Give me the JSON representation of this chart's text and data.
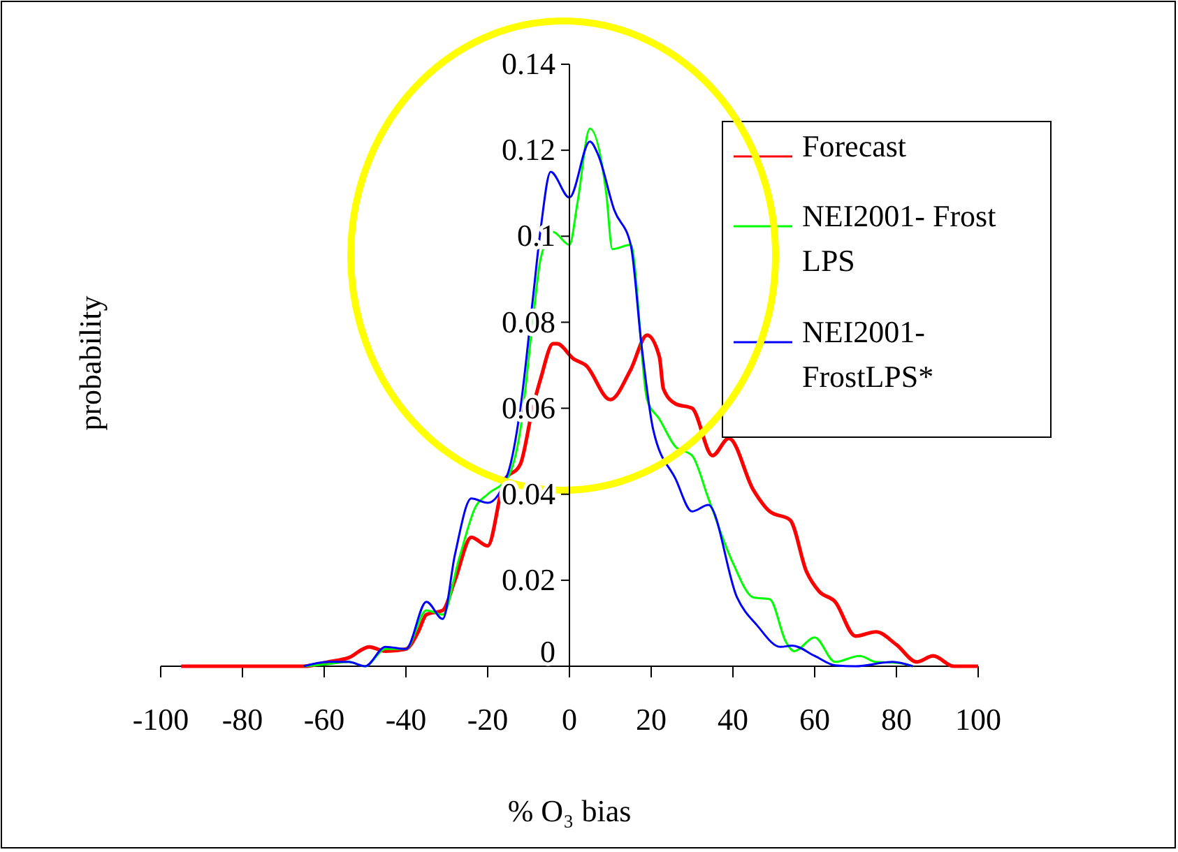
{
  "chart_data": {
    "type": "line",
    "xlabel": "% O₃ bias",
    "ylabel": "probability",
    "xlim": [
      -100,
      100
    ],
    "xticks": [
      -100,
      -80,
      -60,
      -40,
      -20,
      0,
      20,
      40,
      60,
      80,
      100
    ],
    "ylim": [
      0,
      0.14
    ],
    "yticks": [
      0,
      0.02,
      0.04,
      0.06,
      0.08,
      0.1,
      0.12,
      0.14
    ],
    "grid": false,
    "legend": "top right",
    "marker": "none",
    "line_style": "solid",
    "series": [
      {
        "name": "Forecast",
        "color": "#ff0000",
        "x": [
          -95,
          -80,
          -65,
          -59,
          -54,
          -49,
          -45,
          -40,
          -37,
          -35,
          -31,
          -28,
          -24,
          -20,
          -16,
          -12,
          -9,
          -7,
          -4,
          -3,
          1,
          4,
          10,
          15,
          19,
          22,
          23,
          26,
          30,
          35,
          39,
          45,
          49,
          54,
          58,
          61,
          65,
          70,
          75,
          80,
          85,
          89,
          94,
          100
        ],
        "values": [
          0,
          0,
          0,
          0.001,
          0.002,
          0.0045,
          0.0035,
          0.004,
          0.008,
          0.012,
          0.013,
          0.02,
          0.03,
          0.028,
          0.043,
          0.047,
          0.06,
          0.067,
          0.075,
          0.075,
          0.0715,
          0.07,
          0.062,
          0.069,
          0.077,
          0.072,
          0.0645,
          0.061,
          0.06,
          0.049,
          0.053,
          0.041,
          0.036,
          0.034,
          0.022,
          0.0175,
          0.015,
          0.007,
          0.008,
          0.005,
          0.001,
          0.0024,
          0,
          0
        ]
      },
      {
        "name": "NEI2001- Frost LPS",
        "color": "#00ff00",
        "x": [
          -65,
          -59,
          -54,
          -50,
          -45,
          -40,
          -35,
          -31,
          -27,
          -23,
          -20,
          -15,
          -12,
          -9,
          -7,
          -4,
          0,
          2,
          5,
          9,
          10.5,
          15,
          19,
          22,
          26,
          30,
          34,
          40,
          45,
          49,
          53,
          55,
          60,
          65,
          71,
          75,
          80,
          84
        ],
        "values": [
          0,
          0.0005,
          0.001,
          0,
          0.004,
          0.004,
          0.013,
          0.012,
          0.025,
          0.037,
          0.04,
          0.044,
          0.055,
          0.08,
          0.095,
          0.101,
          0.098,
          0.108,
          0.125,
          0.11,
          0.097,
          0.098,
          0.062,
          0.0575,
          0.051,
          0.049,
          0.039,
          0.024,
          0.016,
          0.0156,
          0.0056,
          0.0035,
          0.0067,
          0.001,
          0.0024,
          0.001,
          0.0008,
          0
        ]
      },
      {
        "name": "NEI2001- FrostLPS*",
        "color": "#0000ff",
        "x": [
          -65,
          -59,
          -54,
          -50,
          -45,
          -40,
          -35,
          -31,
          -28,
          -24,
          -20,
          -15,
          -12,
          -9,
          -7,
          -4.6,
          0,
          5,
          7,
          11,
          15,
          17.6,
          20.5,
          26,
          30,
          34,
          41,
          46,
          51.6,
          54.5,
          60,
          65,
          70,
          79,
          84
        ],
        "values": [
          0,
          0.001,
          0.001,
          0,
          0.0045,
          0.004,
          0.015,
          0.011,
          0.026,
          0.039,
          0.038,
          0.045,
          0.06,
          0.085,
          0.102,
          0.115,
          0.109,
          0.122,
          0.119,
          0.106,
          0.098,
          0.075,
          0.055,
          0.0435,
          0.036,
          0.0375,
          0.016,
          0.0094,
          0.0045,
          0.0048,
          0.0024,
          0.0002,
          0,
          0.001,
          0
        ]
      }
    ]
  }
}
